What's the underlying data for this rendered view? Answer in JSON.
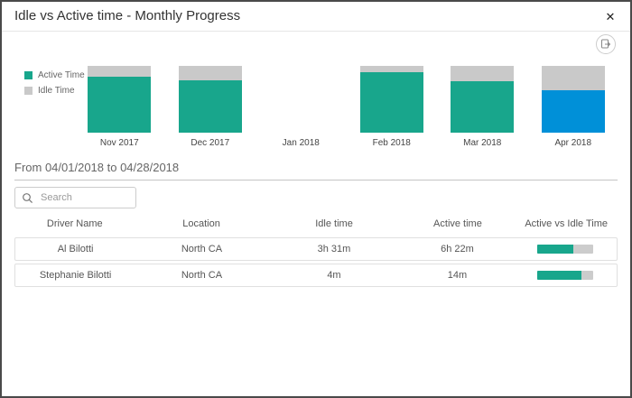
{
  "dialog": {
    "title": "Idle vs Active time - Monthly Progress",
    "close_glyph": "✕"
  },
  "period_heading": "From 04/01/2018 to 04/28/2018",
  "search": {
    "placeholder": "Search"
  },
  "table": {
    "columns": [
      "Driver Name",
      "Location",
      "Idle time",
      "Active time",
      "Active vs Idle Time"
    ],
    "rows": [
      {
        "driver": "Al Bilotti",
        "location": "North CA",
        "idle_time": "3h 31m",
        "active_time": "6h 22m",
        "active_pct": 64
      },
      {
        "driver": "Stephanie Bilotti",
        "location": "North CA",
        "idle_time": "4m",
        "active_time": "14m",
        "active_pct": 78
      }
    ],
    "colors": {
      "idle_text": "#e0795a",
      "active_text": "#18a68c",
      "bar_fill": "#18a68c",
      "bar_track": "#cccccc"
    }
  },
  "chart_data": {
    "type": "bar",
    "stacked": true,
    "title": "Idle vs Active time - Monthly Progress",
    "categories": [
      "Nov 2017",
      "Dec 2017",
      "Jan 2018",
      "Feb 2018",
      "Mar 2018",
      "Apr 2018"
    ],
    "series": [
      {
        "name": "Active Time",
        "values": [
          84,
          78,
          null,
          91,
          77,
          64
        ],
        "color": "#18a68c"
      },
      {
        "name": "Idle Time",
        "values": [
          16,
          22,
          null,
          9,
          23,
          36
        ],
        "color": "#c9c9c9"
      }
    ],
    "value_unit": "percent of month total (estimated from bar heights)",
    "highlighted_category": "Apr 2018",
    "highlight_color": "#0090d8",
    "legend_position": "left",
    "axes_hidden": true,
    "xlabel": "",
    "ylabel": "",
    "ylim": [
      0,
      100
    ]
  }
}
